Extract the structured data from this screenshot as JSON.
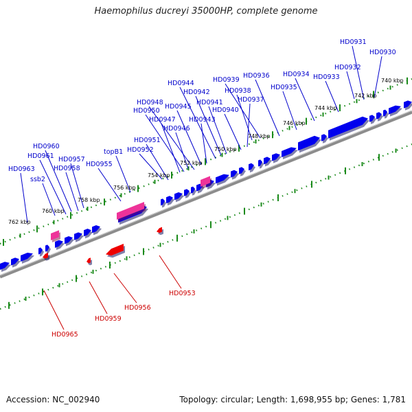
{
  "title": "Haemophilus ducreyi 35000HP, complete genome",
  "footer": {
    "accession": "Accession: NC_002940",
    "stats": "Topology: circular; Length: 1,698,955 bp; Genes: 1,781"
  },
  "colors": {
    "forward_gene": "#0000ee",
    "reverse_gene": "#ee0000",
    "rna_gene": "#ee3399",
    "backbone": "#8c8c8c",
    "ruler": "#1a8a1a",
    "forward_label": "#0000cc",
    "reverse_label": "#cc0000"
  },
  "ticks": [
    {
      "label": "740 kbp"
    },
    {
      "label": "742 kbp"
    },
    {
      "label": "744 kbp"
    },
    {
      "label": "746 kbp"
    },
    {
      "label": "748 kbp"
    },
    {
      "label": "750 kbp"
    },
    {
      "label": "752 kbp"
    },
    {
      "label": "754 kbp"
    },
    {
      "label": "756 kbp"
    },
    {
      "label": "758 kbp"
    },
    {
      "label": "760 kbp"
    },
    {
      "label": "762 kbp"
    }
  ],
  "forward_labels": [
    "HD0931",
    "HD0930",
    "HD0932",
    "HD0933",
    "HD0934",
    "HD0935",
    "HD0936",
    "HD0939",
    "HD0938",
    "HD0937",
    "HD0944",
    "HD0942",
    "HD0941",
    "HD0940",
    "HD0948",
    "HD0945",
    "HD0950",
    "HD0943",
    "HD0947",
    "HD0946",
    "HD0951",
    "HD0952",
    "topB1",
    "HD0955",
    "HD0960",
    "HD0961",
    "HD0957",
    "HD0958",
    "HD0963",
    "ssb2"
  ],
  "reverse_labels": [
    "HD0953",
    "HD0956",
    "HD0959",
    "HD0965"
  ]
}
